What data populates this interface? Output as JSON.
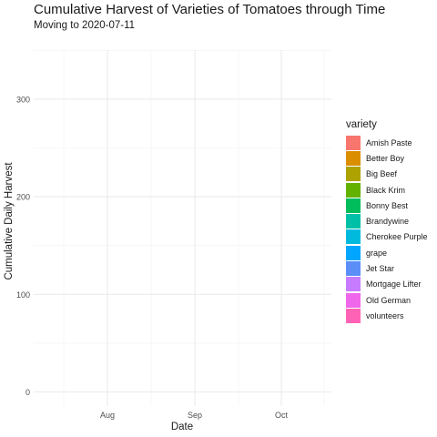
{
  "chart_data": {
    "type": "line",
    "title": "Cumulative Harvest of Varieties of Tomatoes through Time",
    "subtitle": "Moving to 2020-07-11",
    "xlabel": "Date",
    "ylabel": "Cumulative Daily Harvest",
    "x_ticks": [
      "Aug",
      "Sep",
      "Oct"
    ],
    "y_ticks": [
      0,
      100,
      200,
      300
    ],
    "ylim": [
      -15,
      360
    ],
    "grid": true,
    "legend_title": "variety",
    "legend_position": "right",
    "series": [
      {
        "name": "Amish Paste",
        "color": "#F8766D"
      },
      {
        "name": "Better Boy",
        "color": "#DB8E00"
      },
      {
        "name": "Big Beef",
        "color": "#AEA200"
      },
      {
        "name": "Black Krim",
        "color": "#64B200"
      },
      {
        "name": "Bonny Best",
        "color": "#00BD5C"
      },
      {
        "name": "Brandywine",
        "color": "#00C1A7"
      },
      {
        "name": "Cherokee Purple",
        "color": "#00BADE"
      },
      {
        "name": "grape",
        "color": "#00A6FF"
      },
      {
        "name": "Jet Star",
        "color": "#5B8FF7"
      },
      {
        "name": "Mortgage Lifter",
        "color": "#C77CFF"
      },
      {
        "name": "Old German",
        "color": "#EF67EB"
      },
      {
        "name": "volunteers",
        "color": "#FF63B6"
      }
    ]
  }
}
